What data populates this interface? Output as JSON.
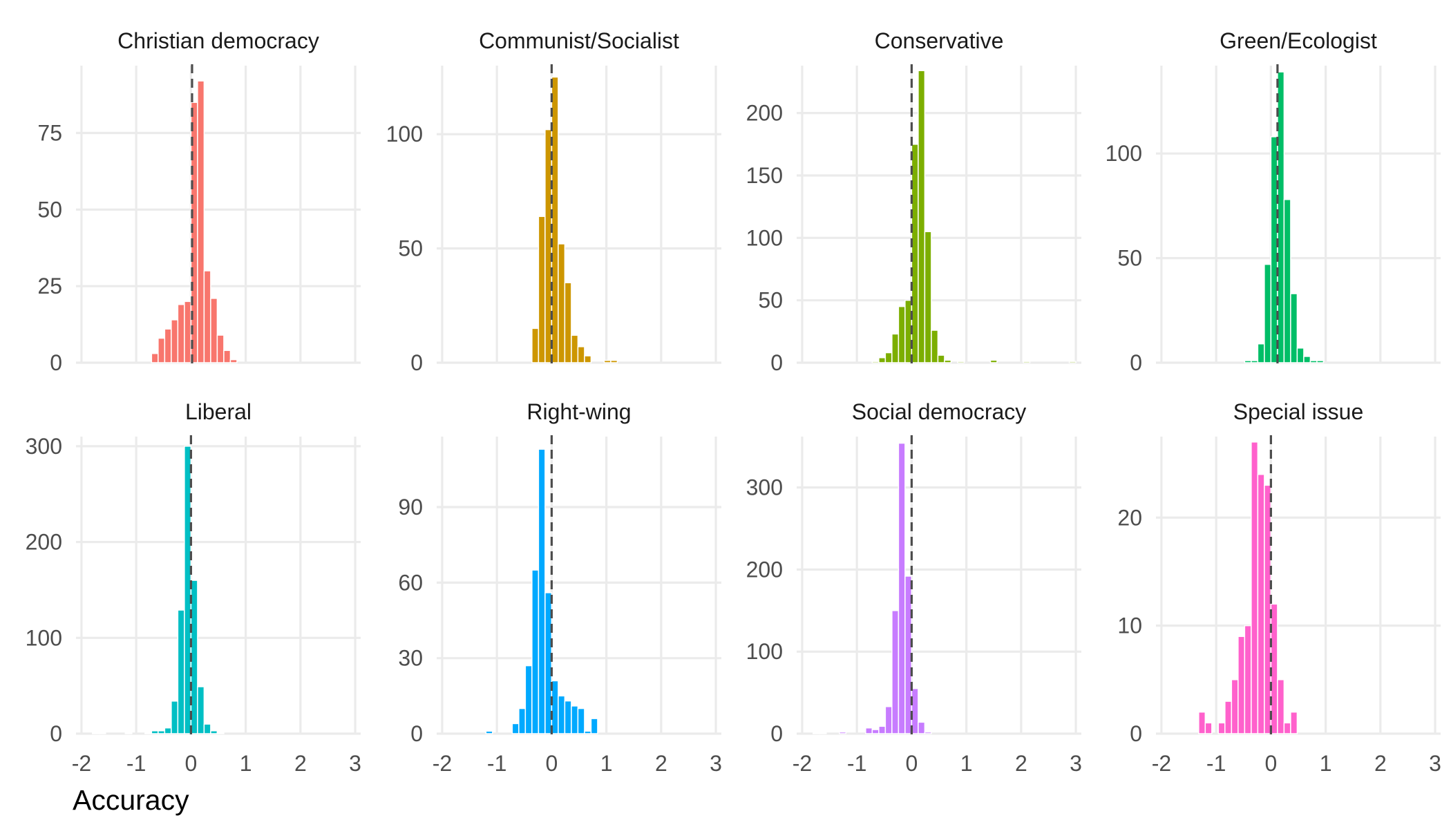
{
  "chart_data": {
    "type": "bar",
    "xlabel": "Accuracy",
    "x_tick_labels": [
      "-2",
      "-1",
      "0",
      "1",
      "2",
      "3"
    ],
    "xlim": [
      -2.1,
      3.1
    ],
    "bin_width": 0.12,
    "grid": true,
    "panels": [
      {
        "title": "Christian democracy",
        "color": "#F8766D",
        "mean": 0.02,
        "ylim": [
          0,
          97
        ],
        "y_ticks": [
          0,
          25,
          50,
          75
        ],
        "bins": [
          {
            "x": -0.72,
            "y": 3
          },
          {
            "x": -0.6,
            "y": 8
          },
          {
            "x": -0.48,
            "y": 11
          },
          {
            "x": -0.36,
            "y": 14
          },
          {
            "x": -0.24,
            "y": 19
          },
          {
            "x": -0.12,
            "y": 20
          },
          {
            "x": 0.0,
            "y": 85
          },
          {
            "x": 0.12,
            "y": 92
          },
          {
            "x": 0.24,
            "y": 30
          },
          {
            "x": 0.36,
            "y": 21
          },
          {
            "x": 0.48,
            "y": 9
          },
          {
            "x": 0.6,
            "y": 4
          },
          {
            "x": 0.72,
            "y": 1
          }
        ]
      },
      {
        "title": "Communist/Socialist",
        "color": "#CD9600",
        "mean": 0.0,
        "ylim": [
          0,
          130
        ],
        "y_ticks": [
          0,
          50,
          100
        ],
        "bins": [
          {
            "x": -0.36,
            "y": 15
          },
          {
            "x": -0.24,
            "y": 64
          },
          {
            "x": -0.12,
            "y": 102
          },
          {
            "x": 0.0,
            "y": 125
          },
          {
            "x": 0.12,
            "y": 52
          },
          {
            "x": 0.24,
            "y": 35
          },
          {
            "x": 0.36,
            "y": 12
          },
          {
            "x": 0.48,
            "y": 7
          },
          {
            "x": 0.6,
            "y": 3
          },
          {
            "x": 0.96,
            "y": 1
          },
          {
            "x": 1.08,
            "y": 1
          }
        ]
      },
      {
        "title": "Conservative",
        "color": "#7CAE00",
        "mean": 0.0,
        "ylim": [
          0,
          238
        ],
        "y_ticks": [
          0,
          50,
          100,
          150,
          200
        ],
        "bins": [
          {
            "x": -0.72,
            "y": 1
          },
          {
            "x": -0.6,
            "y": 4
          },
          {
            "x": -0.48,
            "y": 8
          },
          {
            "x": -0.36,
            "y": 23
          },
          {
            "x": -0.24,
            "y": 45
          },
          {
            "x": -0.12,
            "y": 50
          },
          {
            "x": 0.0,
            "y": 175
          },
          {
            "x": 0.12,
            "y": 234
          },
          {
            "x": 0.24,
            "y": 105
          },
          {
            "x": 0.36,
            "y": 26
          },
          {
            "x": 0.48,
            "y": 6
          },
          {
            "x": 0.6,
            "y": 2
          },
          {
            "x": 0.84,
            "y": 1
          },
          {
            "x": 1.44,
            "y": 2
          },
          {
            "x": 2.04,
            "y": 1
          },
          {
            "x": 2.88,
            "y": 1
          }
        ]
      },
      {
        "title": "Green/Ecologist",
        "color": "#00BE67",
        "mean": 0.12,
        "ylim": [
          0,
          142
        ],
        "y_ticks": [
          0,
          50,
          100
        ],
        "bins": [
          {
            "x": -0.48,
            "y": 1
          },
          {
            "x": -0.36,
            "y": 1
          },
          {
            "x": -0.24,
            "y": 9
          },
          {
            "x": -0.12,
            "y": 47
          },
          {
            "x": 0.0,
            "y": 108
          },
          {
            "x": 0.12,
            "y": 139
          },
          {
            "x": 0.24,
            "y": 78
          },
          {
            "x": 0.36,
            "y": 33
          },
          {
            "x": 0.48,
            "y": 7
          },
          {
            "x": 0.6,
            "y": 3
          },
          {
            "x": 0.72,
            "y": 1
          },
          {
            "x": 0.84,
            "y": 1
          }
        ]
      },
      {
        "title": "Liberal",
        "color": "#00BFC4",
        "mean": 0.0,
        "ylim": [
          0,
          310
        ],
        "y_ticks": [
          0,
          100,
          200,
          300
        ],
        "bins": [
          {
            "x": -1.8,
            "y": 1
          },
          {
            "x": -1.68,
            "y": 1
          },
          {
            "x": -1.2,
            "y": 1
          },
          {
            "x": -0.84,
            "y": 1
          },
          {
            "x": -0.72,
            "y": 3
          },
          {
            "x": -0.6,
            "y": 3
          },
          {
            "x": -0.48,
            "y": 6
          },
          {
            "x": -0.36,
            "y": 34
          },
          {
            "x": -0.24,
            "y": 129
          },
          {
            "x": -0.12,
            "y": 300
          },
          {
            "x": 0.0,
            "y": 160
          },
          {
            "x": 0.12,
            "y": 49
          },
          {
            "x": 0.24,
            "y": 10
          },
          {
            "x": 0.36,
            "y": 3
          },
          {
            "x": 0.48,
            "y": 1
          }
        ]
      },
      {
        "title": "Right-wing",
        "color": "#00A9FF",
        "mean": 0.0,
        "ylim": [
          0,
          118
        ],
        "y_ticks": [
          0,
          30,
          60,
          90
        ],
        "bins": [
          {
            "x": -1.2,
            "y": 1
          },
          {
            "x": -0.72,
            "y": 4
          },
          {
            "x": -0.6,
            "y": 10
          },
          {
            "x": -0.48,
            "y": 27
          },
          {
            "x": -0.36,
            "y": 65
          },
          {
            "x": -0.24,
            "y": 113
          },
          {
            "x": -0.12,
            "y": 56
          },
          {
            "x": 0.0,
            "y": 21
          },
          {
            "x": 0.12,
            "y": 15
          },
          {
            "x": 0.24,
            "y": 13
          },
          {
            "x": 0.36,
            "y": 11
          },
          {
            "x": 0.48,
            "y": 10
          },
          {
            "x": 0.6,
            "y": 1
          },
          {
            "x": 0.72,
            "y": 6
          }
        ]
      },
      {
        "title": "Social democracy",
        "color": "#C77CFF",
        "mean": 0.0,
        "ylim": [
          0,
          362
        ],
        "y_ticks": [
          0,
          100,
          200,
          300
        ],
        "bins": [
          {
            "x": -1.8,
            "y": 1
          },
          {
            "x": -1.68,
            "y": 1
          },
          {
            "x": -1.32,
            "y": 2
          },
          {
            "x": -0.84,
            "y": 7
          },
          {
            "x": -0.72,
            "y": 5
          },
          {
            "x": -0.6,
            "y": 9
          },
          {
            "x": -0.48,
            "y": 33
          },
          {
            "x": -0.36,
            "y": 150
          },
          {
            "x": -0.24,
            "y": 354
          },
          {
            "x": -0.12,
            "y": 192
          },
          {
            "x": 0.0,
            "y": 55
          },
          {
            "x": 0.12,
            "y": 14
          },
          {
            "x": 0.24,
            "y": 2
          }
        ]
      },
      {
        "title": "Special issue",
        "color": "#FF61CC",
        "mean": 0.0,
        "ylim": [
          0,
          27.5
        ],
        "y_ticks": [
          0,
          10,
          20
        ],
        "bins": [
          {
            "x": -1.32,
            "y": 2
          },
          {
            "x": -1.2,
            "y": 1
          },
          {
            "x": -0.96,
            "y": 1
          },
          {
            "x": -0.84,
            "y": 3
          },
          {
            "x": -0.72,
            "y": 5
          },
          {
            "x": -0.6,
            "y": 9
          },
          {
            "x": -0.48,
            "y": 10
          },
          {
            "x": -0.36,
            "y": 27
          },
          {
            "x": -0.24,
            "y": 24
          },
          {
            "x": -0.12,
            "y": 23
          },
          {
            "x": 0.0,
            "y": 12
          },
          {
            "x": 0.12,
            "y": 5
          },
          {
            "x": 0.24,
            "y": 1
          },
          {
            "x": 0.36,
            "y": 2
          }
        ]
      }
    ]
  }
}
